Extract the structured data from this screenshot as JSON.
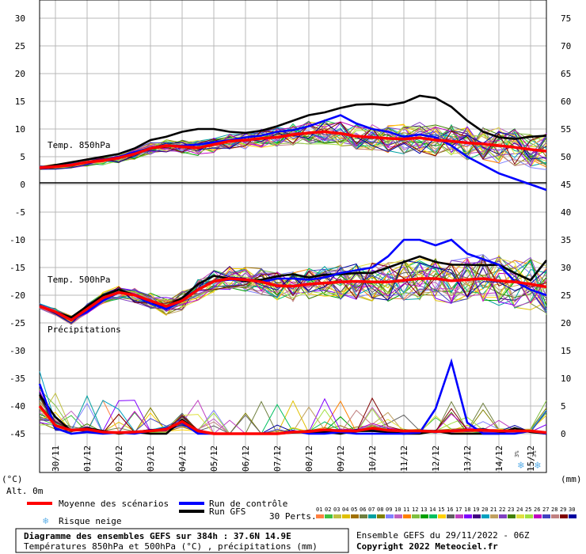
{
  "chart_data": {
    "type": "line",
    "title": "Diagramme des ensembles GEFS sur 384h : 37.6N 14.9E",
    "subtitle": "Températures 850hPa et 500hPa (°C) , précipitations (mm)",
    "left_axis_unit": "(°C)",
    "right_axis_unit": "(mm)",
    "altitude": "Alt. 0m",
    "left_ticks": [
      30,
      25,
      20,
      15,
      10,
      5,
      0,
      -5,
      -10,
      -15,
      -20,
      -25,
      -30,
      -35,
      -40,
      -45
    ],
    "right_ticks": [
      75,
      70,
      65,
      60,
      55,
      50,
      45,
      40,
      35,
      30,
      25,
      20,
      15,
      10,
      5,
      0
    ],
    "ylim": [
      -45,
      30
    ],
    "date_labels": [
      "30/11",
      "01/12",
      "02/12",
      "03/12",
      "04/12",
      "05/12",
      "06/12",
      "07/12",
      "08/12",
      "09/12",
      "10/12",
      "11/12",
      "12/12",
      "13/12",
      "14/12",
      "15/12"
    ],
    "panel_labels": [
      "Temp. 850hPa",
      "Temp. 500hPa",
      "Précipitations"
    ],
    "x_hours": [
      0,
      12,
      24,
      36,
      48,
      60,
      72,
      84,
      96,
      108,
      120,
      132,
      144,
      156,
      168,
      180,
      192,
      204,
      216,
      228,
      240,
      252,
      264,
      276,
      288,
      300,
      312,
      324,
      336,
      348,
      360,
      372,
      384
    ],
    "series_t850": [
      {
        "name": "Moyenne des scénarios",
        "color": "#ff0000",
        "values": [
          3,
          3.2,
          3.5,
          4,
          4.3,
          4.8,
          5.5,
          6.5,
          7,
          6.8,
          6.6,
          7.2,
          7.8,
          8,
          8.3,
          8.5,
          9,
          9.3,
          9.5,
          9.2,
          8.7,
          8.5,
          8.3,
          8.2,
          8.4,
          8,
          7.8,
          7.5,
          7.3,
          7,
          6.7,
          6.3,
          6
        ]
      },
      {
        "name": "Run de contrôle",
        "color": "#0000ff",
        "values": [
          3,
          3.2,
          3.6,
          4,
          4.4,
          5,
          5.8,
          6.6,
          7,
          7,
          7.2,
          7.6,
          8,
          8.5,
          8.8,
          9.5,
          9.8,
          10.5,
          11.5,
          12.5,
          11,
          10,
          9.5,
          8.6,
          9,
          8.5,
          7,
          5,
          3.5,
          2,
          1,
          0,
          -1
        ]
      },
      {
        "name": "Run GFS",
        "color": "#000000",
        "values": [
          3,
          3.5,
          4,
          4.5,
          5,
          5.5,
          6.5,
          8,
          8.6,
          9.5,
          10,
          10,
          9.5,
          9.3,
          9.7,
          10.5,
          11.5,
          12.5,
          13,
          13.8,
          14.4,
          14.5,
          14.3,
          14.8,
          16,
          15.6,
          14,
          11.5,
          9.5,
          8.5,
          8.2,
          8.6,
          8.8
        ]
      }
    ],
    "series_t500": [
      {
        "name": "Moyenne des scénarios",
        "color": "#ff0000",
        "values": [
          -22,
          -23,
          -24.5,
          -22.5,
          -20.5,
          -19.5,
          -20,
          -21,
          -22,
          -21,
          -19,
          -17.5,
          -17,
          -17.2,
          -17.6,
          -18.3,
          -18.4,
          -18,
          -17.8,
          -17.6,
          -17.5,
          -17.6,
          -17.6,
          -17.3,
          -17,
          -17,
          -17.4,
          -17.2,
          -17,
          -17.4,
          -17.6,
          -18,
          -18.5
        ]
      },
      {
        "name": "Run de contrôle",
        "color": "#0000ff",
        "values": [
          -22,
          -23,
          -24.5,
          -23,
          -21,
          -19.5,
          -20,
          -21.5,
          -22.5,
          -21,
          -19,
          -17.5,
          -17.2,
          -17.2,
          -17.6,
          -17,
          -17,
          -17.2,
          -16.8,
          -16,
          -15.5,
          -15,
          -13,
          -10,
          -10,
          -11,
          -10,
          -12.5,
          -13.5,
          -14.5,
          -17.5,
          -19,
          -20
        ]
      },
      {
        "name": "Run GFS",
        "color": "#000000",
        "values": [
          -22,
          -23,
          -24,
          -22,
          -20,
          -19,
          -20,
          -21.5,
          -22,
          -20.5,
          -18,
          -16.5,
          -17,
          -17.5,
          -17.2,
          -16.6,
          -16.2,
          -16.8,
          -16.3,
          -16.2,
          -16,
          -16,
          -15,
          -14,
          -13,
          -14,
          -14.5,
          -14.5,
          -14.6,
          -14.5,
          -16,
          -17.3,
          -13.7
        ]
      }
    ],
    "series_precip": [
      {
        "name": "Moyenne des scénarios",
        "color": "#ff0000",
        "values": [
          5,
          1.5,
          0.6,
          0.8,
          0.3,
          0.2,
          0.3,
          0.5,
          0.8,
          2.2,
          0.5,
          0,
          0,
          0,
          0,
          0,
          0.3,
          0.4,
          0.7,
          0.5,
          0.5,
          1,
          0.6,
          0.5,
          0.5,
          0.4,
          0.5,
          0.6,
          0.6,
          0.5,
          0.5,
          0.5,
          0.2
        ]
      },
      {
        "name": "Run de contrôle",
        "color": "#0000ff",
        "values": [
          9,
          1,
          0,
          0.3,
          0,
          0.2,
          0,
          0.5,
          1,
          2,
          0,
          0,
          0,
          0,
          0,
          0,
          0.5,
          0,
          0,
          0.3,
          0,
          0,
          0,
          0,
          0.2,
          4.5,
          13,
          2,
          0,
          0,
          0,
          0.5,
          0
        ]
      },
      {
        "name": "Run GFS",
        "color": "#000000",
        "values": [
          7,
          3,
          0.5,
          1,
          0.5,
          0,
          0.3,
          0,
          0,
          2.5,
          0.5,
          0,
          0,
          0,
          0,
          0,
          0.2,
          0.3,
          0.3,
          0,
          0.5,
          0.5,
          0.3,
          0,
          0,
          0.5,
          0,
          0,
          0,
          0,
          1,
          0.3,
          0
        ]
      }
    ],
    "snow_risk": [
      "3%",
      "3%"
    ]
  },
  "legend": {
    "mean_label": "Moyenne des scénarios",
    "control_label": "Run de contrôle",
    "gfs_label": "Run GFS",
    "perts_label": "30 Perts.",
    "snow_label": "Risque neige",
    "mean_color": "#ff0000",
    "control_color": "#0000ff",
    "gfs_color": "#000000"
  },
  "perturbations": {
    "labels": [
      "01",
      "02",
      "03",
      "04",
      "05",
      "06",
      "07",
      "08",
      "09",
      "10",
      "11",
      "12",
      "13",
      "14",
      "15",
      "16",
      "17",
      "18",
      "19",
      "20",
      "21",
      "22",
      "23",
      "24",
      "25",
      "26",
      "27",
      "28",
      "29",
      "30"
    ],
    "colors": [
      "#ff8040",
      "#40c040",
      "#c0c040",
      "#e0c000",
      "#a07000",
      "#708040",
      "#00a0a0",
      "#808000",
      "#8080ff",
      "#c060c0",
      "#ff8000",
      "#80c040",
      "#00a000",
      "#00c060",
      "#ffd000",
      "#606060",
      "#c040c0",
      "#8000ff",
      "#400080",
      "#00a0c0",
      "#c0a060",
      "#8040c0",
      "#408000",
      "#e0e040",
      "#a0e040",
      "#c000c0",
      "#4040c0",
      "#c08080",
      "#800000",
      "#0000a0"
    ]
  },
  "footer": {
    "ensemble": "Ensemble GEFS du 29/11/2022 - 06Z",
    "copyright": "Copyright 2022 Meteociel.fr"
  }
}
